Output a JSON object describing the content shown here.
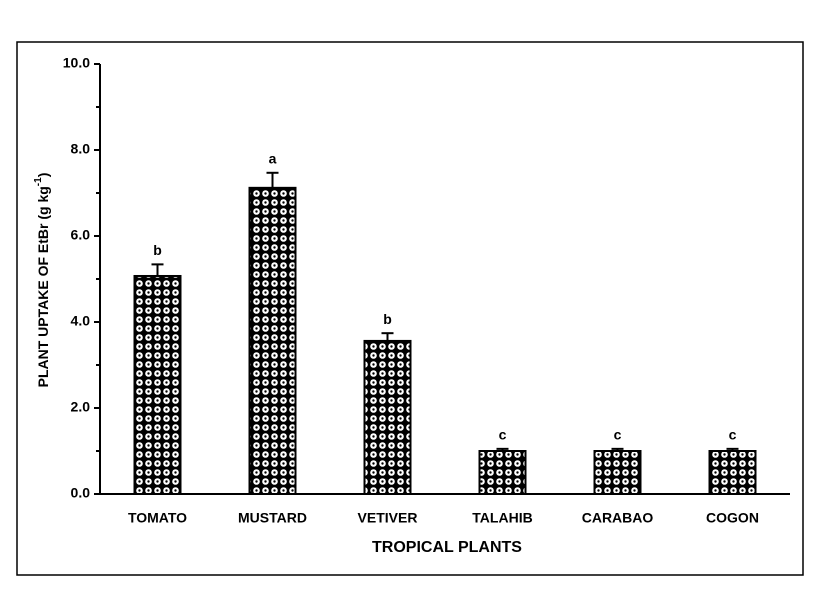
{
  "chart_data": {
    "type": "bar",
    "x_label": "TROPICAL PLANTS",
    "y_label": [
      "PLANT UPTAKE OF EtBr (g kg",
      "-1",
      ")"
    ],
    "categories": [
      "TOMATO",
      "MUSTARD",
      "VETIVER",
      "TALAHIB",
      "CARABAO",
      "COGON"
    ],
    "values": [
      5.07,
      7.12,
      3.56,
      1.0,
      1.0,
      1.0
    ],
    "errors": [
      0.27,
      0.35,
      0.18,
      0.05,
      0.05,
      0.05
    ],
    "significance_letters": [
      "b",
      "a",
      "b",
      "c",
      "c",
      "c"
    ],
    "color": "#000000",
    "ylim": [
      0,
      10
    ],
    "yticks": [
      {
        "value": 0,
        "label": "0.0"
      },
      {
        "value": 2,
        "label": "2.0"
      },
      {
        "value": 4,
        "label": "4.0"
      },
      {
        "value": 6,
        "label": "6.0"
      },
      {
        "value": 8,
        "label": "8.0"
      },
      {
        "value": 10,
        "label": "10.0"
      }
    ],
    "yminor_ticks": [
      1,
      3,
      5,
      7,
      9
    ]
  }
}
